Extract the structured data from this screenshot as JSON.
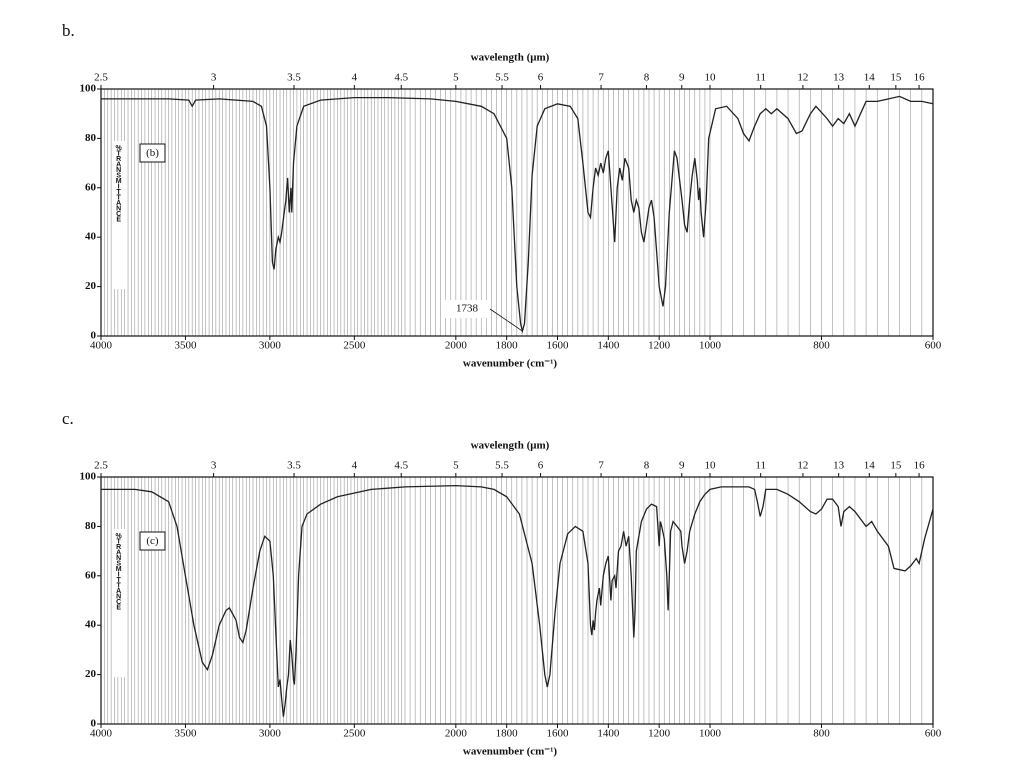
{
  "chart_data": [
    {
      "type": "line",
      "title": "b.",
      "xlabel": "wavenumber (cm⁻¹)",
      "x2label": "wavelength (μm)",
      "ylabel": "%TRANSMITTANCE",
      "inset_label": "(b)",
      "xlim": [
        4000,
        600
      ],
      "ylim": [
        0,
        100
      ],
      "xticks": [
        4000,
        3500,
        3000,
        2500,
        2000,
        1800,
        1600,
        1400,
        1200,
        1000,
        800,
        600
      ],
      "x2ticks": [
        2.5,
        3,
        3.5,
        4,
        4.5,
        5,
        5.5,
        6,
        7,
        8,
        9,
        10,
        11,
        12,
        13,
        14,
        15,
        16
      ],
      "yticks": [
        0,
        20,
        40,
        60,
        80,
        100
      ],
      "annotations": [
        {
          "text": "1738",
          "x": 1738,
          "y": 2
        }
      ],
      "x": [
        4000,
        3600,
        3480,
        3460,
        3440,
        3300,
        3100,
        3050,
        3020,
        3000,
        2985,
        2975,
        2965,
        2950,
        2940,
        2930,
        2915,
        2905,
        2900,
        2895,
        2885,
        2875,
        2870,
        2860,
        2840,
        2800,
        2700,
        2500,
        2300,
        2100,
        2000,
        1900,
        1850,
        1800,
        1780,
        1760,
        1745,
        1738,
        1730,
        1715,
        1700,
        1680,
        1650,
        1600,
        1550,
        1520,
        1500,
        1480,
        1470,
        1460,
        1450,
        1440,
        1430,
        1420,
        1410,
        1400,
        1390,
        1375,
        1365,
        1355,
        1345,
        1335,
        1320,
        1310,
        1300,
        1290,
        1280,
        1270,
        1260,
        1250,
        1240,
        1230,
        1220,
        1200,
        1185,
        1175,
        1160,
        1140,
        1130,
        1110,
        1100,
        1090,
        1080,
        1070,
        1060,
        1050,
        1045,
        1040,
        1035,
        1025,
        1015,
        1005,
        990,
        970,
        950,
        940,
        930,
        920,
        910,
        900,
        890,
        880,
        860,
        845,
        835,
        820,
        810,
        790,
        780,
        770,
        760,
        750,
        740,
        730,
        720,
        700,
        660,
        640,
        620,
        600
      ],
      "series": [
        {
          "color": "#222222",
          "values": [
            96,
            96,
            95.5,
            93,
            95.5,
            96,
            95,
            93,
            85,
            60,
            30,
            27,
            35,
            40,
            38,
            42,
            50,
            55,
            60,
            64,
            50,
            60,
            50,
            70,
            85,
            93,
            95.5,
            96.5,
            96.5,
            96,
            95,
            93,
            90,
            80,
            60,
            20,
            5,
            2,
            5,
            30,
            65,
            85,
            92,
            94,
            93,
            88,
            70,
            50,
            48,
            60,
            68,
            65,
            70,
            66,
            72,
            75,
            60,
            38,
            60,
            68,
            63,
            72,
            68,
            55,
            50,
            55,
            52,
            42,
            38,
            45,
            52,
            55,
            48,
            20,
            12,
            20,
            50,
            75,
            72,
            55,
            45,
            42,
            55,
            65,
            72,
            63,
            55,
            60,
            50,
            40,
            55,
            80,
            92,
            93,
            88,
            82,
            79,
            85,
            90,
            92,
            90,
            92,
            88,
            82,
            83,
            90,
            93,
            88,
            85,
            88,
            86,
            90,
            85,
            90,
            95,
            95,
            97,
            95,
            95,
            94
          ]
        }
      ]
    },
    {
      "type": "line",
      "title": "c.",
      "xlabel": "wavenumber (cm⁻¹)",
      "x2label": "wavelength (μm)",
      "ylabel": "%TRANSMITTANCE",
      "inset_label": "(c)",
      "xlim": [
        4000,
        600
      ],
      "ylim": [
        0,
        100
      ],
      "xticks": [
        4000,
        3500,
        3000,
        2500,
        2000,
        1800,
        1600,
        1400,
        1200,
        1000,
        800,
        600
      ],
      "x2ticks": [
        2.5,
        3,
        3.5,
        4,
        4.5,
        5,
        5.5,
        6,
        7,
        8,
        9,
        10,
        11,
        12,
        13,
        14,
        15,
        16
      ],
      "yticks": [
        0,
        20,
        40,
        60,
        80,
        100
      ],
      "x": [
        4000,
        3800,
        3700,
        3600,
        3550,
        3500,
        3450,
        3400,
        3370,
        3340,
        3300,
        3260,
        3240,
        3200,
        3180,
        3160,
        3140,
        3100,
        3060,
        3030,
        3000,
        2980,
        2960,
        2950,
        2940,
        2930,
        2920,
        2910,
        2900,
        2890,
        2880,
        2870,
        2860,
        2855,
        2845,
        2830,
        2810,
        2780,
        2700,
        2600,
        2400,
        2200,
        2000,
        1900,
        1850,
        1800,
        1750,
        1700,
        1670,
        1650,
        1640,
        1630,
        1610,
        1590,
        1560,
        1530,
        1500,
        1480,
        1470,
        1465,
        1460,
        1455,
        1450,
        1445,
        1435,
        1430,
        1420,
        1410,
        1400,
        1390,
        1385,
        1375,
        1370,
        1360,
        1350,
        1340,
        1330,
        1320,
        1310,
        1300,
        1295,
        1290,
        1270,
        1250,
        1230,
        1210,
        1200,
        1195,
        1190,
        1180,
        1170,
        1165,
        1160,
        1155,
        1145,
        1130,
        1115,
        1110,
        1100,
        1090,
        1080,
        1060,
        1040,
        1020,
        1000,
        980,
        960,
        940,
        930,
        920,
        915,
        910,
        905,
        900,
        880,
        860,
        840,
        820,
        810,
        800,
        790,
        780,
        770,
        765,
        760,
        750,
        740,
        720,
        710,
        700,
        680,
        670,
        650,
        640,
        630,
        625,
        615,
        600
      ],
      "series": [
        {
          "color": "#222222",
          "values": [
            95,
            95,
            94,
            90,
            80,
            60,
            40,
            25,
            22,
            28,
            40,
            46,
            47,
            42,
            35,
            33,
            38,
            55,
            70,
            76,
            74,
            60,
            30,
            15,
            18,
            10,
            3,
            8,
            15,
            20,
            34,
            28,
            18,
            16,
            30,
            60,
            80,
            85,
            89,
            92,
            95,
            96,
            96.5,
            96,
            95,
            92,
            85,
            65,
            40,
            20,
            15,
            20,
            45,
            65,
            77,
            80,
            78,
            65,
            40,
            36,
            42,
            38,
            45,
            50,
            55,
            48,
            60,
            65,
            68,
            50,
            58,
            60,
            55,
            70,
            72,
            78,
            72,
            76,
            60,
            35,
            45,
            70,
            82,
            87,
            89,
            88,
            72,
            82,
            80,
            75,
            60,
            46,
            60,
            78,
            82,
            80,
            78,
            72,
            65,
            70,
            78,
            85,
            90,
            93,
            95,
            96,
            96,
            96,
            96,
            95,
            90,
            84,
            88,
            95,
            95,
            93,
            90,
            86,
            85,
            87,
            91,
            91,
            88,
            80,
            86,
            88,
            86,
            80,
            82,
            78,
            72,
            63,
            62,
            64,
            67,
            65,
            75,
            87
          ]
        }
      ]
    }
  ]
}
